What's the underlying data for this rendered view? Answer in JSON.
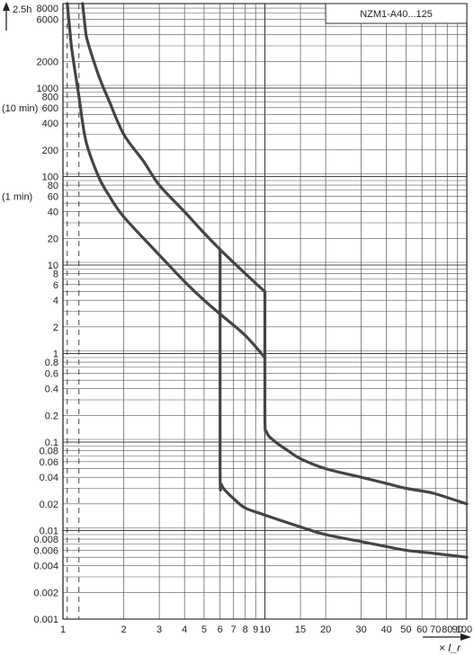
{
  "chart_data": {
    "type": "line",
    "title": "NZM1-A40...125",
    "xlabel": "× I_r",
    "ylabel": "",
    "x_scale": "log",
    "y_scale": "log",
    "xlim": [
      1,
      100
    ],
    "ylim": [
      0.001,
      9000
    ],
    "grid": true,
    "x_ticks": [
      1,
      2,
      3,
      4,
      5,
      6,
      7,
      8,
      9,
      10,
      15,
      20,
      30,
      40,
      50,
      60,
      70,
      80,
      90,
      100
    ],
    "x_tick_labels": [
      {
        "value": 1,
        "label": "1"
      },
      {
        "value": 2,
        "label": "2"
      },
      {
        "value": 3,
        "label": "3"
      },
      {
        "value": 4,
        "label": "4"
      },
      {
        "value": 5,
        "label": "5"
      },
      {
        "value": 6,
        "label": "6"
      },
      {
        "value": 7,
        "label": "7"
      },
      {
        "value": 8,
        "label": "8"
      },
      {
        "value": 9,
        "label": "9"
      },
      {
        "value": 10,
        "label": "10"
      },
      {
        "value": 15,
        "label": "15"
      },
      {
        "value": 20,
        "label": "20"
      },
      {
        "value": 30,
        "label": "30"
      },
      {
        "value": 40,
        "label": "40"
      },
      {
        "value": 50,
        "label": "50"
      },
      {
        "value": 60,
        "label": "60"
      },
      {
        "value": 70,
        "label": "70"
      },
      {
        "value": 80,
        "label": "80"
      },
      {
        "value": 90,
        "label": "90"
      },
      {
        "value": 100,
        "label": "100"
      }
    ],
    "y_ticks": [
      0.001,
      0.002,
      0.004,
      0.006,
      0.008,
      0.01,
      0.02,
      0.04,
      0.06,
      0.08,
      0.1,
      0.2,
      0.4,
      0.6,
      0.8,
      1,
      2,
      4,
      6,
      8,
      10,
      20,
      40,
      60,
      80,
      100,
      200,
      400,
      600,
      800,
      1000,
      2000,
      6000,
      8000
    ],
    "y_tick_labels": [
      {
        "value": 0.001,
        "label": "0.001"
      },
      {
        "value": 0.002,
        "label": "0.002"
      },
      {
        "value": 0.004,
        "label": "0.004"
      },
      {
        "value": 0.006,
        "label": "0.006"
      },
      {
        "value": 0.008,
        "label": "0.008"
      },
      {
        "value": 0.01,
        "label": "0.01"
      },
      {
        "value": 0.02,
        "label": "0.02"
      },
      {
        "value": 0.04,
        "label": "0.04"
      },
      {
        "value": 0.06,
        "label": "0.06"
      },
      {
        "value": 0.08,
        "label": "0.08"
      },
      {
        "value": 0.1,
        "label": "0.1"
      },
      {
        "value": 0.2,
        "label": "0.2"
      },
      {
        "value": 0.4,
        "label": "0.4"
      },
      {
        "value": 0.6,
        "label": "0.6"
      },
      {
        "value": 0.8,
        "label": "0.8"
      },
      {
        "value": 1,
        "label": "1"
      },
      {
        "value": 2,
        "label": "2"
      },
      {
        "value": 4,
        "label": "4"
      },
      {
        "value": 6,
        "label": "6"
      },
      {
        "value": 8,
        "label": "8"
      },
      {
        "value": 10,
        "label": "10"
      },
      {
        "value": 20,
        "label": "20"
      },
      {
        "value": 40,
        "label": "40"
      },
      {
        "value": 60,
        "label": "60"
      },
      {
        "value": 80,
        "label": "80"
      },
      {
        "value": 100,
        "label": "100"
      },
      {
        "value": 200,
        "label": "200"
      },
      {
        "value": 400,
        "label": "400"
      },
      {
        "value": 600,
        "label": "600"
      },
      {
        "value": 800,
        "label": "800"
      },
      {
        "value": 1000,
        "label": "1000"
      },
      {
        "value": 2000,
        "label": "2000"
      },
      {
        "value": 6000,
        "label": "6000"
      },
      {
        "value": 8000,
        "label": "8000"
      }
    ],
    "y_time_labels": [
      {
        "value": 9000,
        "label": "2.5h"
      },
      {
        "value": 600,
        "label": "(10 min)"
      },
      {
        "value": 60,
        "label": "(1 min)"
      }
    ],
    "dashed_reference_x": [
      1.05,
      1.2
    ],
    "series": [
      {
        "points": [
          [
            1.05,
            9000
          ],
          [
            1.1,
            3000
          ],
          [
            1.2,
            800
          ],
          [
            1.3,
            250
          ],
          [
            1.5,
            100
          ],
          [
            1.7,
            60
          ],
          [
            2,
            35
          ],
          [
            3,
            13
          ],
          [
            4,
            6.5
          ],
          [
            5,
            4
          ],
          [
            6,
            2.8
          ],
          [
            8,
            1.6
          ],
          [
            10,
            0.9
          ]
        ]
      },
      {
        "points": [
          [
            1.25,
            9000
          ],
          [
            1.3,
            4000
          ],
          [
            1.5,
            1400
          ],
          [
            1.7,
            700
          ],
          [
            2,
            300
          ],
          [
            2.5,
            150
          ],
          [
            3,
            80
          ],
          [
            4,
            40
          ],
          [
            5,
            23
          ],
          [
            6,
            15
          ],
          [
            8,
            8
          ],
          [
            10,
            5
          ]
        ]
      },
      {
        "points": [
          [
            6,
            15
          ],
          [
            6,
            0.05
          ],
          [
            6.1,
            0.033
          ],
          [
            6.5,
            0.027
          ],
          [
            7,
            0.023
          ],
          [
            8,
            0.018
          ],
          [
            10,
            0.015
          ],
          [
            15,
            0.011
          ],
          [
            20,
            0.009
          ],
          [
            30,
            0.0075
          ],
          [
            40,
            0.0066
          ],
          [
            50,
            0.006
          ],
          [
            70,
            0.0055
          ],
          [
            100,
            0.005
          ]
        ]
      },
      {
        "points": [
          [
            10,
            5
          ],
          [
            10,
            0.2
          ],
          [
            10.2,
            0.13
          ],
          [
            11,
            0.105
          ],
          [
            13,
            0.08
          ],
          [
            15,
            0.065
          ],
          [
            20,
            0.05
          ],
          [
            30,
            0.04
          ],
          [
            40,
            0.034
          ],
          [
            50,
            0.03
          ],
          [
            60,
            0.028
          ],
          [
            70,
            0.026
          ],
          [
            100,
            0.02
          ]
        ]
      }
    ]
  }
}
